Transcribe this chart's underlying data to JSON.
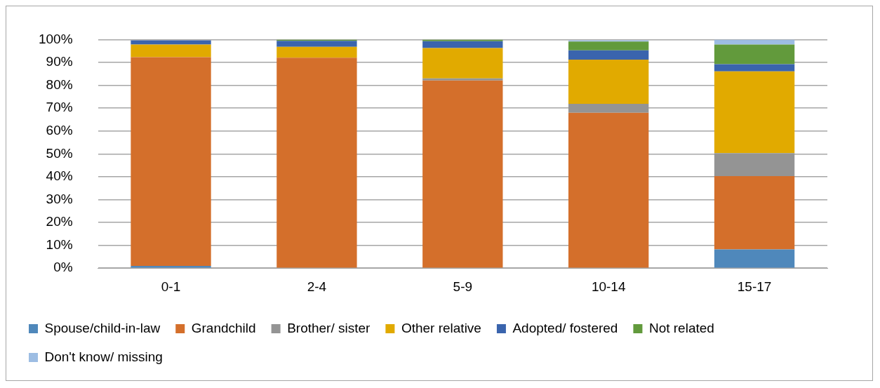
{
  "chart_data": {
    "type": "bar",
    "stacked": true,
    "categories": [
      "0-1",
      "2-4",
      "5-9",
      "10-14",
      "15-17"
    ],
    "series": [
      {
        "name": "Spouse/child-in-law",
        "color": "#4f88bb",
        "values": [
          1.0,
          0,
          0,
          null,
          8.2
        ]
      },
      {
        "name": "Grandchild",
        "color": "#d46f2b",
        "values": [
          91.3,
          92.1,
          82.1,
          68.0,
          32.1
        ]
      },
      {
        "name": "Brother/ sister",
        "color": "#949494",
        "values": [
          null,
          0,
          0.9,
          3.9,
          10.0
        ]
      },
      {
        "name": "Other relative",
        "color": "#e1aa00",
        "values": [
          5.5,
          4.7,
          13.3,
          19.3,
          35.8
        ]
      },
      {
        "name": "Adopted/ fostered",
        "color": "#3a64ad",
        "values": [
          1.9,
          2.6,
          3.0,
          4.1,
          3.1
        ]
      },
      {
        "name": "Not related",
        "color": "#629a3c",
        "values": [
          0,
          0.6,
          0.7,
          3.8,
          8.6
        ]
      },
      {
        "name": "Don't know/ missing",
        "color": "#9dbde3",
        "values": [
          0,
          0,
          0,
          0.6,
          2.2
        ]
      }
    ],
    "ylim": [
      0,
      100
    ],
    "yticks": [
      {
        "value": 0,
        "label": "0%"
      },
      {
        "value": 10,
        "label": "10%"
      },
      {
        "value": 20,
        "label": "20%"
      },
      {
        "value": 30,
        "label": "30%"
      },
      {
        "value": 40,
        "label": "40%"
      },
      {
        "value": 50,
        "label": "50%"
      },
      {
        "value": 60,
        "label": "60%"
      },
      {
        "value": 70,
        "label": "70%"
      },
      {
        "value": 80,
        "label": "80%"
      },
      {
        "value": 90,
        "label": "90%"
      },
      {
        "value": 100,
        "label": "100%"
      }
    ],
    "grid": "y",
    "legend": "bottom"
  }
}
